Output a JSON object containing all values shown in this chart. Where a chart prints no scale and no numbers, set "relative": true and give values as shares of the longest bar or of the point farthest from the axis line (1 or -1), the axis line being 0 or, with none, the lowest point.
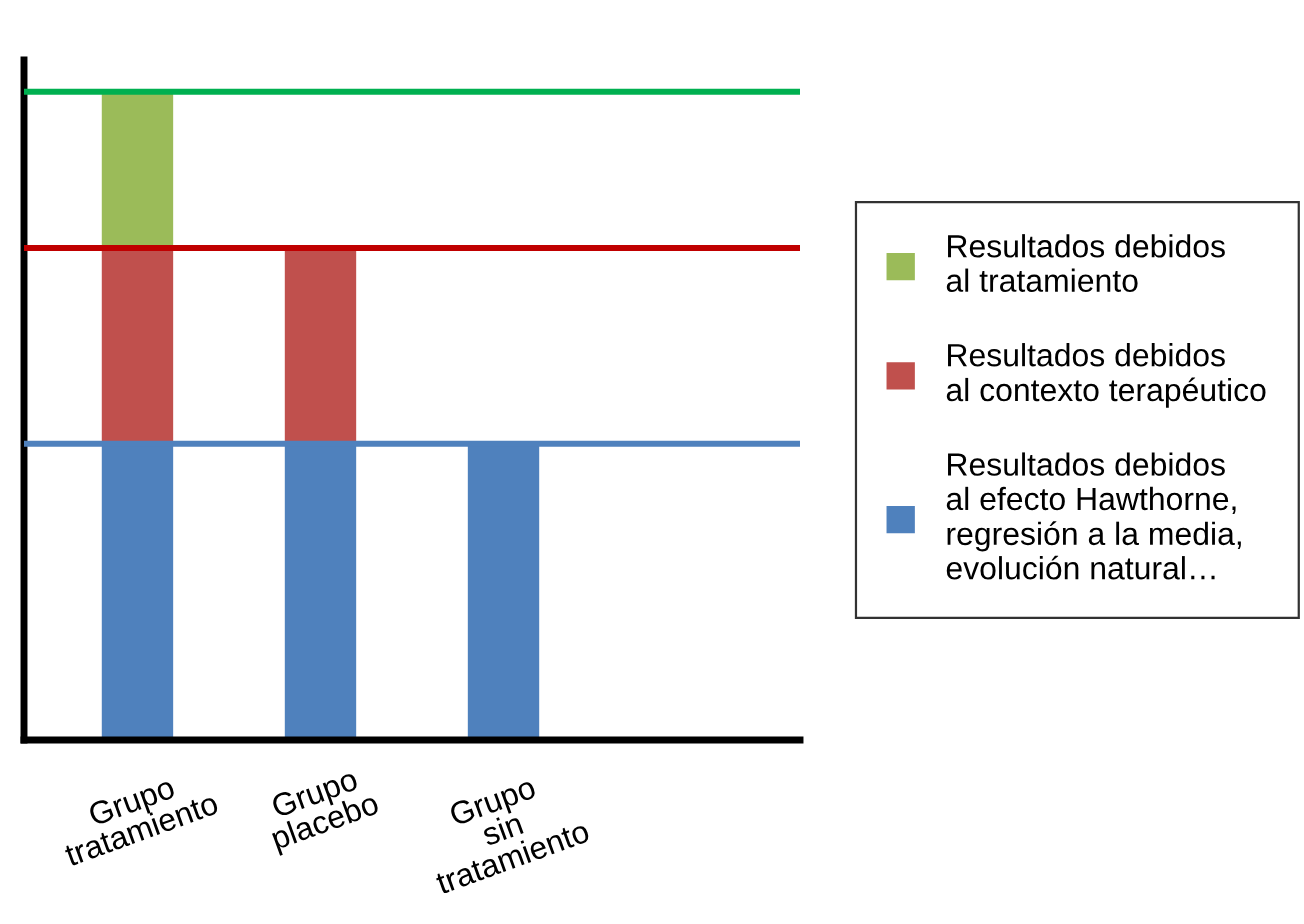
{
  "chart_data": {
    "type": "bar",
    "stacked": true,
    "relative": true,
    "categories": [
      "Grupo\ntratamiento",
      "Grupo\nplacebo",
      "Grupo\nsin\ntratamiento"
    ],
    "series": [
      {
        "name": "Resultados debidos\nal efecto Hawthorne,\nregresión a la media,\nevolución natural…",
        "color": "#4f81bd",
        "values": [
          0.457,
          0.457,
          0.457
        ]
      },
      {
        "name": "Resultados debidos\nal contexto terapéutico",
        "color": "#c0504d",
        "values": [
          0.302,
          0.302,
          null
        ]
      },
      {
        "name": "Resultados debidos\nal tratamiento",
        "color": "#9bbb59",
        "values": [
          0.241,
          null,
          null
        ]
      }
    ],
    "ref_lines": [
      {
        "axis": "y",
        "value": 0.457,
        "color": "#4f81bd"
      },
      {
        "axis": "y",
        "value": 0.759,
        "color": "#c00000"
      },
      {
        "axis": "y",
        "value": 1.0,
        "color": "#00b050"
      }
    ],
    "legend": "right",
    "grid": false
  }
}
